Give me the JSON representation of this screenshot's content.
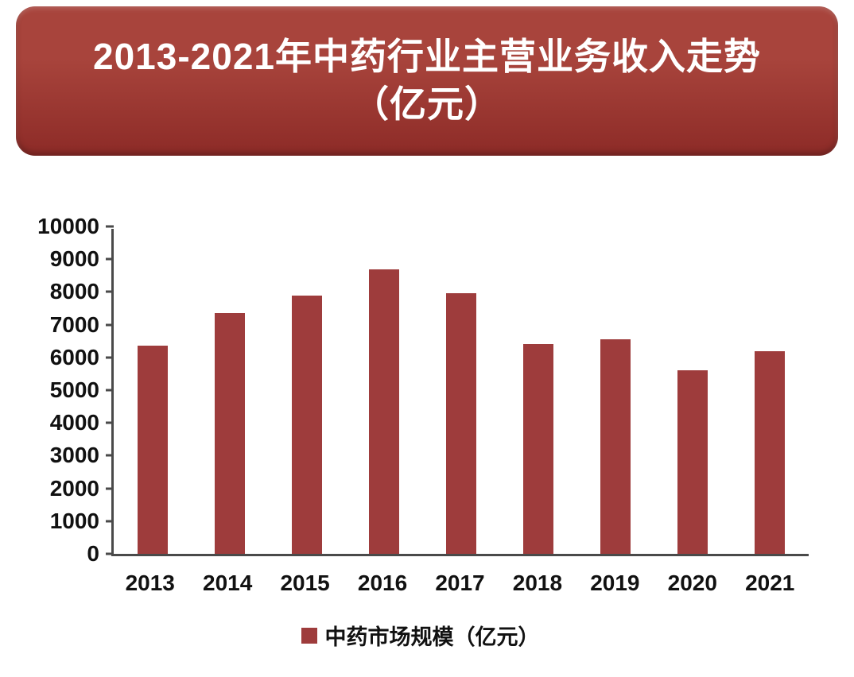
{
  "banner": {
    "title_line1": "2013-2021年中药行业主营业务收入走势",
    "title_line2": "（亿元）",
    "gradient_top": "#a8443c",
    "gradient_bottom": "#8d2b27",
    "text_color": "#ffffff"
  },
  "chart_data": {
    "type": "bar",
    "title": "2013-2021年中药行业主营业务收入走势（亿元）",
    "categories": [
      "2013",
      "2014",
      "2015",
      "2016",
      "2017",
      "2018",
      "2019",
      "2020",
      "2021"
    ],
    "series": [
      {
        "name": "中药市场规模（亿元）",
        "values": [
          6350,
          7350,
          7900,
          8700,
          7950,
          6400,
          6550,
          5600,
          6200
        ]
      }
    ],
    "legend": "中药市场规模（亿元）",
    "xlabel": "",
    "ylabel": "",
    "ylim": [
      0,
      10000
    ],
    "ytick_step": 1000,
    "grid": false,
    "legend_position": "bottom",
    "bar_color": "#9e3c3c",
    "axis_color": "#4a4a4a"
  }
}
